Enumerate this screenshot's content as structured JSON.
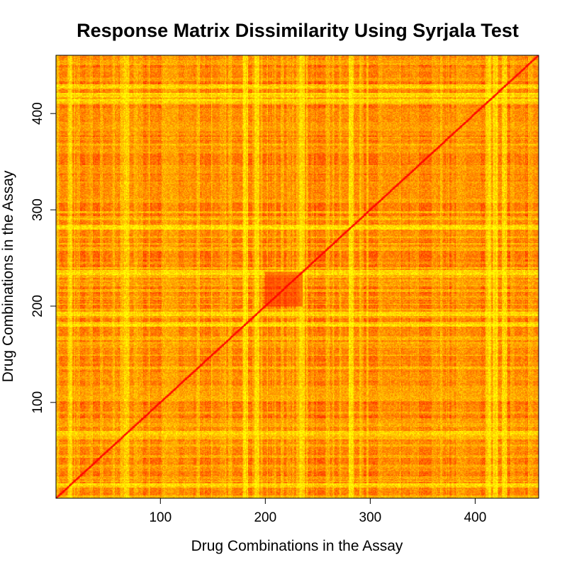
{
  "chart_data": {
    "type": "heatmap",
    "title": "Response Matrix Dissimilarity Using Syrjala Test",
    "xlabel": "Drug Combinations in the Assay",
    "ylabel": "Drug Combinations in the Assay",
    "n": 460,
    "xlim": [
      1,
      460
    ],
    "ylim": [
      1,
      460
    ],
    "x_ticks": [
      100,
      200,
      300,
      400
    ],
    "y_ticks": [
      100,
      200,
      300,
      400
    ],
    "color_scale": [
      "#ff0000",
      "#ff5500",
      "#ffaa00",
      "#ffff00"
    ],
    "grid": false,
    "legend": "none",
    "diagonal_value": 0,
    "high_dissimilarity_bands": [
      14,
      68,
      181,
      192,
      235,
      282,
      413,
      419,
      428
    ],
    "low_dissimilarity_blocks": [
      [
        200,
        235
      ]
    ]
  }
}
